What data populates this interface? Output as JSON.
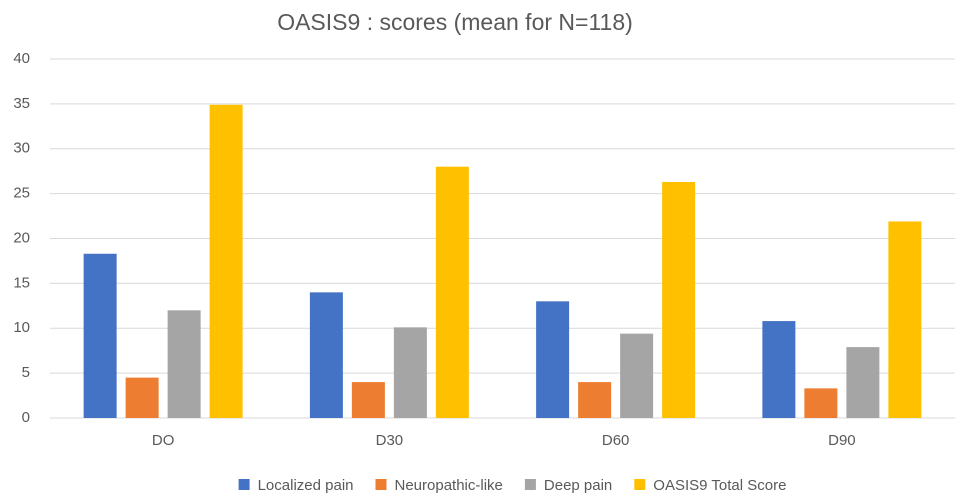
{
  "chart_data": {
    "type": "bar",
    "title": "OASIS9 : scores  (mean for N=118)",
    "categories": [
      "DO",
      "D30",
      "D60",
      "D90"
    ],
    "series": [
      {
        "name": "Localized pain",
        "color": "#4472c4",
        "values": [
          18.3,
          14.0,
          13.0,
          10.8
        ]
      },
      {
        "name": "Neuropathic-like",
        "color": "#ed7d31",
        "values": [
          4.5,
          4.0,
          4.0,
          3.3
        ]
      },
      {
        "name": "Deep pain",
        "color": "#a5a5a5",
        "values": [
          12.0,
          10.1,
          9.4,
          7.9
        ]
      },
      {
        "name": "OASIS9 Total Score",
        "color": "#ffc000",
        "values": [
          34.9,
          28.0,
          26.3,
          21.9
        ]
      }
    ],
    "ylim": [
      0,
      40
    ],
    "yticks": [
      0,
      5,
      10,
      15,
      20,
      25,
      30,
      35,
      40
    ],
    "grid": true,
    "legend": "bottom"
  }
}
